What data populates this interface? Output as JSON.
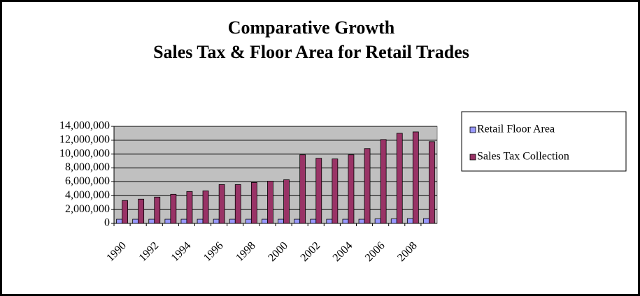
{
  "chart_data": {
    "type": "bar",
    "title": "Comparative Growth",
    "subtitle": "Sales Tax & Floor Area for Retail Trades",
    "categories": [
      "1990",
      null,
      "1992",
      null,
      "1994",
      null,
      "1996",
      null,
      "1998",
      null,
      "2000",
      null,
      "2002",
      null,
      "2004",
      null,
      "2006",
      null,
      "2008",
      null
    ],
    "series": [
      {
        "name": "Retail Floor Area",
        "color": "#9999ff",
        "values": [
          600000,
          600000,
          600000,
          600000,
          600000,
          600000,
          600000,
          600000,
          600000,
          600000,
          600000,
          600000,
          600000,
          600000,
          600000,
          600000,
          650000,
          650000,
          700000,
          700000
        ]
      },
      {
        "name": "Sales Tax Collection",
        "color": "#993366",
        "values": [
          3300000,
          3500000,
          3800000,
          4200000,
          4600000,
          4700000,
          5600000,
          5600000,
          5900000,
          6100000,
          6300000,
          9900000,
          9400000,
          9300000,
          9900000,
          10800000,
          12100000,
          13000000,
          13200000,
          11800000
        ]
      }
    ],
    "ylim": [
      0,
      14000000
    ],
    "yticks": [
      0,
      {
        "value": 2000000,
        "label": "2,000,000"
      },
      {
        "value": 4000000,
        "label": "4,000,000"
      },
      {
        "value": 6000000,
        "label": "6,000,000"
      },
      {
        "value": 8000000,
        "label": "8,000,000"
      },
      {
        "value": 10000000,
        "label": "10,000,000"
      },
      {
        "value": 12000000,
        "label": "12,000,000"
      },
      {
        "value": 14000000,
        "label": "14,000,000"
      }
    ],
    "grid": true,
    "legend": "right"
  }
}
